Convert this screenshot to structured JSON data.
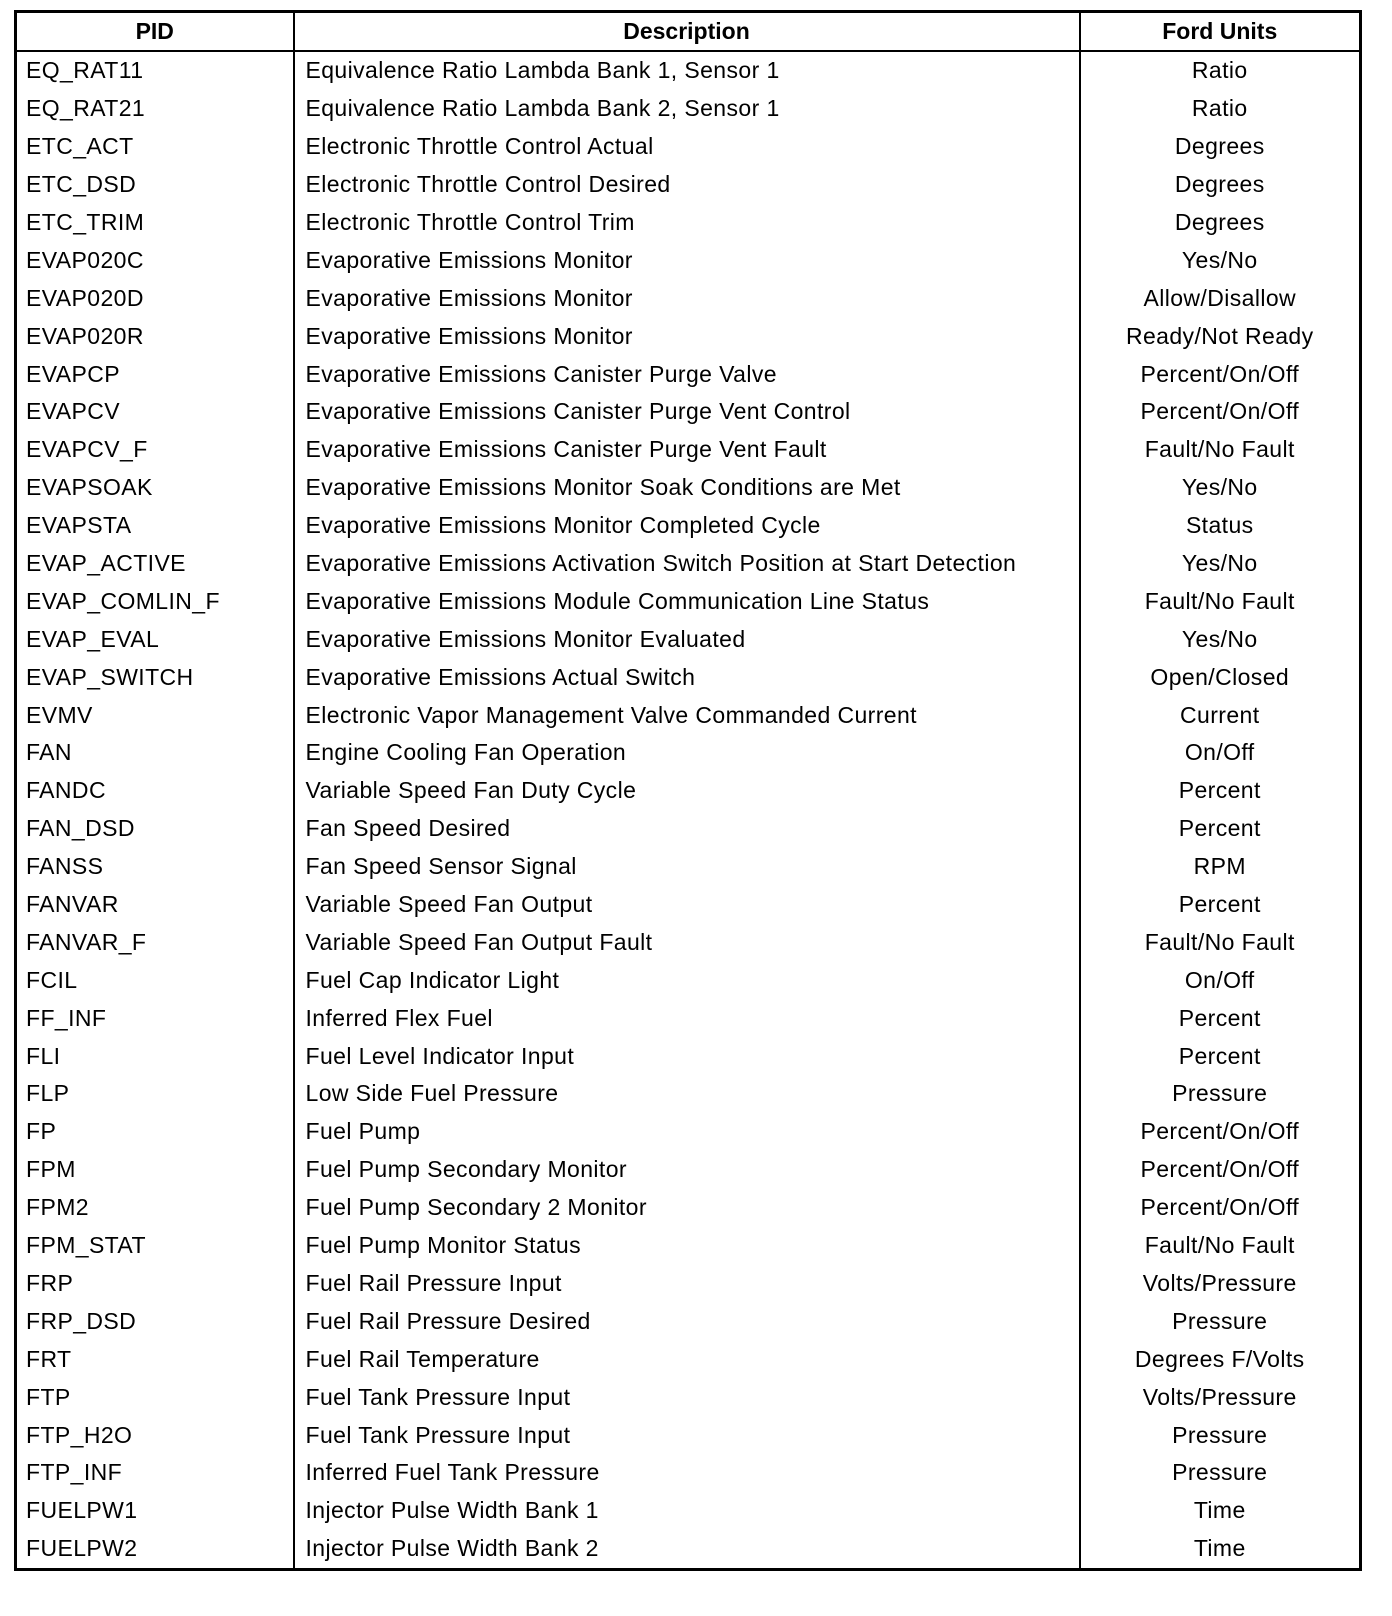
{
  "headers": {
    "pid": "PID",
    "description": "Description",
    "units": "Ford Units"
  },
  "rows": [
    {
      "pid": "EQ_RAT11",
      "description": "Equivalence Ratio Lambda Bank 1, Sensor 1",
      "units": "Ratio"
    },
    {
      "pid": "EQ_RAT21",
      "description": "Equivalence Ratio Lambda Bank 2, Sensor 1",
      "units": "Ratio"
    },
    {
      "pid": "ETC_ACT",
      "description": "Electronic Throttle Control Actual",
      "units": "Degrees"
    },
    {
      "pid": "ETC_DSD",
      "description": "Electronic Throttle Control Desired",
      "units": "Degrees"
    },
    {
      "pid": "ETC_TRIM",
      "description": "Electronic Throttle Control Trim",
      "units": "Degrees"
    },
    {
      "pid": "EVAP020C",
      "description": "Evaporative Emissions Monitor",
      "units": "Yes/No"
    },
    {
      "pid": "EVAP020D",
      "description": "Evaporative Emissions Monitor",
      "units": "Allow/Disallow"
    },
    {
      "pid": "EVAP020R",
      "description": "Evaporative Emissions Monitor",
      "units": "Ready/Not Ready"
    },
    {
      "pid": "EVAPCP",
      "description": "Evaporative Emissions Canister Purge Valve",
      "units": "Percent/On/Off"
    },
    {
      "pid": "EVAPCV",
      "description": "Evaporative Emissions Canister Purge Vent Control",
      "units": "Percent/On/Off"
    },
    {
      "pid": "EVAPCV_F",
      "description": "Evaporative Emissions Canister Purge Vent Fault",
      "units": "Fault/No Fault"
    },
    {
      "pid": "EVAPSOAK",
      "description": "Evaporative Emissions Monitor Soak Conditions are Met",
      "units": "Yes/No"
    },
    {
      "pid": "EVAPSTA",
      "description": "Evaporative Emissions Monitor Completed Cycle",
      "units": "Status"
    },
    {
      "pid": "EVAP_ACTIVE",
      "description": "Evaporative Emissions Activation Switch Position at Start Detection",
      "units": "Yes/No"
    },
    {
      "pid": "EVAP_COMLIN_F",
      "description": "Evaporative Emissions Module Communication Line Status",
      "units": "Fault/No Fault"
    },
    {
      "pid": "EVAP_EVAL",
      "description": "Evaporative Emissions Monitor Evaluated",
      "units": "Yes/No"
    },
    {
      "pid": "EVAP_SWITCH",
      "description": "Evaporative Emissions Actual Switch",
      "units": "Open/Closed"
    },
    {
      "pid": "EVMV",
      "description": "Electronic Vapor Management Valve Commanded Current",
      "units": "Current"
    },
    {
      "pid": "FAN",
      "description": "Engine Cooling Fan Operation",
      "units": "On/Off"
    },
    {
      "pid": "FANDC",
      "description": "Variable Speed Fan Duty Cycle",
      "units": "Percent"
    },
    {
      "pid": "FAN_DSD",
      "description": "Fan Speed Desired",
      "units": "Percent"
    },
    {
      "pid": "FANSS",
      "description": "Fan Speed Sensor Signal",
      "units": "RPM"
    },
    {
      "pid": "FANVAR",
      "description": "Variable Speed Fan Output",
      "units": "Percent"
    },
    {
      "pid": "FANVAR_F",
      "description": "Variable Speed Fan Output Fault",
      "units": "Fault/No Fault"
    },
    {
      "pid": "FCIL",
      "description": "Fuel Cap Indicator Light",
      "units": "On/Off"
    },
    {
      "pid": "FF_INF",
      "description": "Inferred Flex Fuel",
      "units": "Percent"
    },
    {
      "pid": "FLI",
      "description": "Fuel Level Indicator Input",
      "units": "Percent"
    },
    {
      "pid": "FLP",
      "description": "Low Side Fuel Pressure",
      "units": "Pressure"
    },
    {
      "pid": "FP",
      "description": "Fuel Pump",
      "units": "Percent/On/Off"
    },
    {
      "pid": "FPM",
      "description": "Fuel Pump Secondary Monitor",
      "units": "Percent/On/Off"
    },
    {
      "pid": "FPM2",
      "description": "Fuel Pump Secondary 2 Monitor",
      "units": "Percent/On/Off"
    },
    {
      "pid": "FPM_STAT",
      "description": "Fuel Pump Monitor Status",
      "units": "Fault/No Fault"
    },
    {
      "pid": "FRP",
      "description": "Fuel Rail Pressure Input",
      "units": "Volts/Pressure"
    },
    {
      "pid": "FRP_DSD",
      "description": "Fuel Rail Pressure Desired",
      "units": "Pressure"
    },
    {
      "pid": "FRT",
      "description": "Fuel Rail Temperature",
      "units": "Degrees F/Volts"
    },
    {
      "pid": "FTP",
      "description": "Fuel Tank Pressure Input",
      "units": "Volts/Pressure"
    },
    {
      "pid": "FTP_H2O",
      "description": "Fuel Tank Pressure Input",
      "units": "Pressure"
    },
    {
      "pid": "FTP_INF",
      "description": "Inferred Fuel Tank Pressure",
      "units": "Pressure"
    },
    {
      "pid": "FUELPW1",
      "description": "Injector Pulse Width Bank 1",
      "units": "Time"
    },
    {
      "pid": "FUELPW2",
      "description": "Injector Pulse Width Bank 2",
      "units": "Time"
    }
  ]
}
